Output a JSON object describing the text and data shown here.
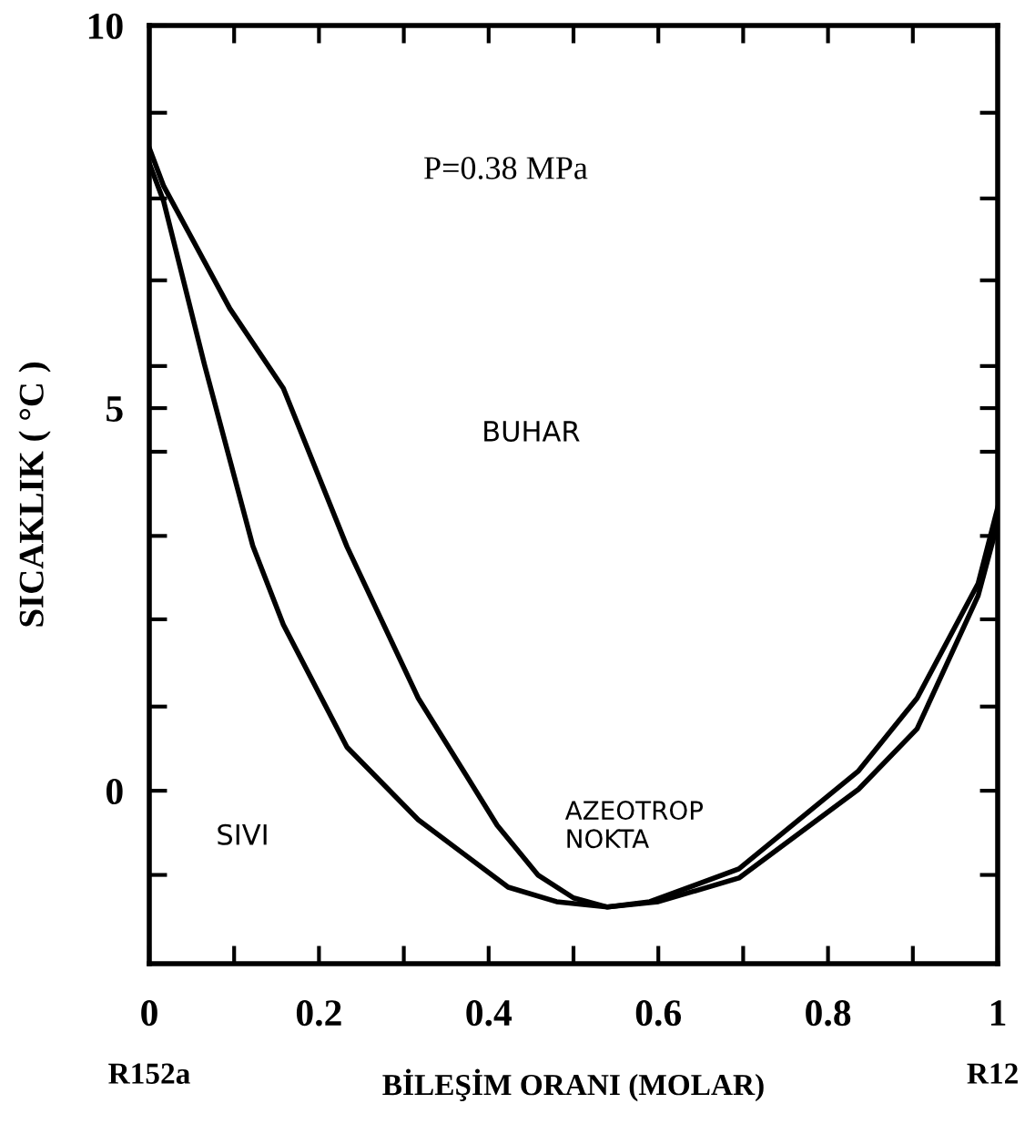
{
  "chart_data": {
    "type": "line",
    "xlabel": "BİLEŞİM ORANI (MOLAR)",
    "ylabel": "SICAKLIK ( °C )",
    "annotations": [
      "P=0.38 MPa",
      "BUHAR",
      "SIVI",
      {
        "text": "AZEOTROP\nNOKTA",
        "x": 0.54,
        "y": -1.52
      },
      "R152a",
      "R12"
    ],
    "series": [
      {
        "color": "#000000",
        "x": [
          0,
          0.017,
          0.095,
          0.158,
          0.233,
          0.317,
          0.41,
          0.458,
          0.5,
          0.54,
          0.59,
          0.695,
          0.836,
          0.905,
          0.977,
          1
        ],
        "values": [
          8.4,
          7.9,
          6.3,
          5.26,
          3.19,
          1.21,
          -0.45,
          -1.1,
          -1.4,
          -1.52,
          -1.45,
          -1.02,
          0.26,
          1.21,
          2.71,
          3.7
        ]
      },
      {
        "color": "#000000",
        "x": [
          0,
          0.017,
          0.065,
          0.122,
          0.158,
          0.233,
          0.317,
          0.423,
          0.48,
          0.54,
          0.6,
          0.695,
          0.836,
          0.905,
          0.977,
          1
        ],
        "values": [
          8.2,
          7.7,
          5.57,
          3.2,
          2.17,
          0.57,
          -0.38,
          -1.26,
          -1.45,
          -1.52,
          -1.45,
          -1.14,
          0.02,
          0.81,
          2.55,
          3.5
        ]
      }
    ],
    "xlim": [
      0,
      1
    ],
    "ylim": [
      -2.26,
      10
    ],
    "xticks": [
      0,
      {
        "value": 0.1,
        "label": null
      },
      0.2,
      {
        "value": 0.3,
        "label": null
      },
      0.4,
      {
        "value": 0.5,
        "label": null
      },
      0.6,
      {
        "value": 0.7,
        "label": null
      },
      0.8,
      {
        "value": 0.9,
        "label": null
      },
      1
    ],
    "yticks": [
      {
        "value": -1.1,
        "label": null
      },
      0,
      {
        "value": 1.1,
        "label": null
      },
      {
        "value": 2.24,
        "label": null
      },
      {
        "value": 3.33,
        "label": null
      },
      {
        "value": 4.43,
        "label": null
      },
      5,
      {
        "value": 5.55,
        "label": null
      },
      {
        "value": 6.67,
        "label": null
      },
      {
        "value": 7.74,
        "label": null
      },
      {
        "value": 8.86,
        "label": null
      },
      10
    ],
    "grid": false,
    "legend": false,
    "marker": "none",
    "line_style": "solid"
  }
}
